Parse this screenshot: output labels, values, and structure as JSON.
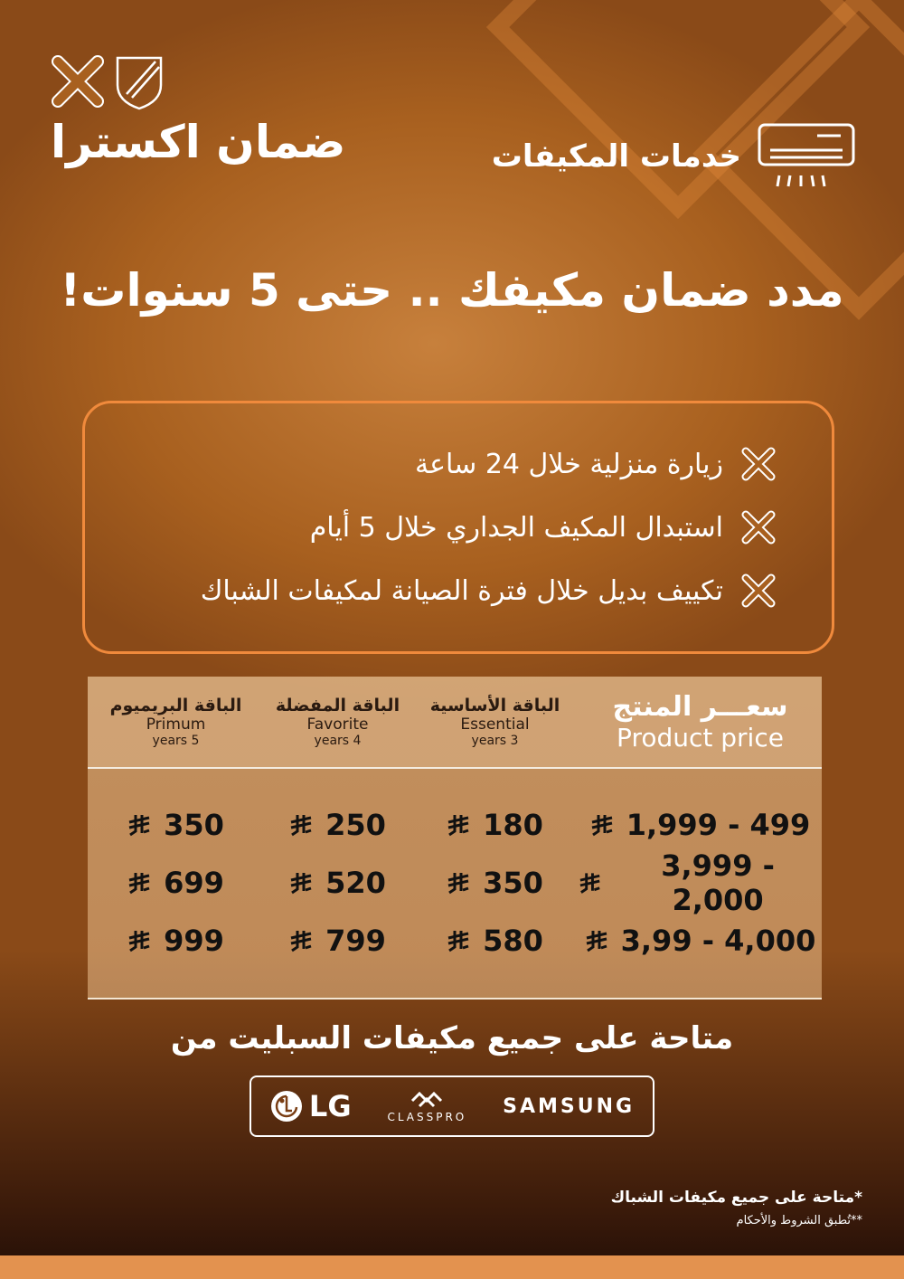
{
  "brand": {
    "name": "ضمان اكسترا",
    "service": "خدمات المكيفات"
  },
  "headline": "مدد ضمان مكيفك .. حتى 5 سنوات!",
  "features": [
    "زيارة منزلية خلال 24 ساعة",
    "استبدال المكيف الجداري خلال 5 أيام",
    "تكييف بديل خلال فترة الصيانة لمكيفات الشباك"
  ],
  "table": {
    "headers": [
      {
        "ar": "سعـــر المنتج",
        "en": "Product price"
      },
      {
        "ar": "الباقة الأساسية",
        "en": "Essential",
        "years": "3 years"
      },
      {
        "ar": "الباقة المفضلة",
        "en": "Favorite",
        "years": "4 years"
      },
      {
        "ar": "الباقة البريميوم",
        "en": "Primum",
        "years": "5 years"
      }
    ],
    "rows": [
      [
        "1,999 - 499",
        "180",
        "250",
        "350"
      ],
      [
        "3,999 - 2,000",
        "350",
        "520",
        "699"
      ],
      [
        "3,99 - 4,000",
        "580",
        "799",
        "999"
      ]
    ],
    "currency": "saudi-riyal-icon"
  },
  "availability": "متاحة على جميع مكيفات السبليت من",
  "brands": [
    "LG",
    "CLASSPRO",
    "SAMSUNG"
  ],
  "notes": [
    "*متاحة على جميع مكيفات الشباك",
    "**تُطبق الشروط والأحكام"
  ],
  "colors": {
    "accent": "#f08a3c",
    "background": "#a8601f",
    "bottom_bar": "#e3924f"
  }
}
